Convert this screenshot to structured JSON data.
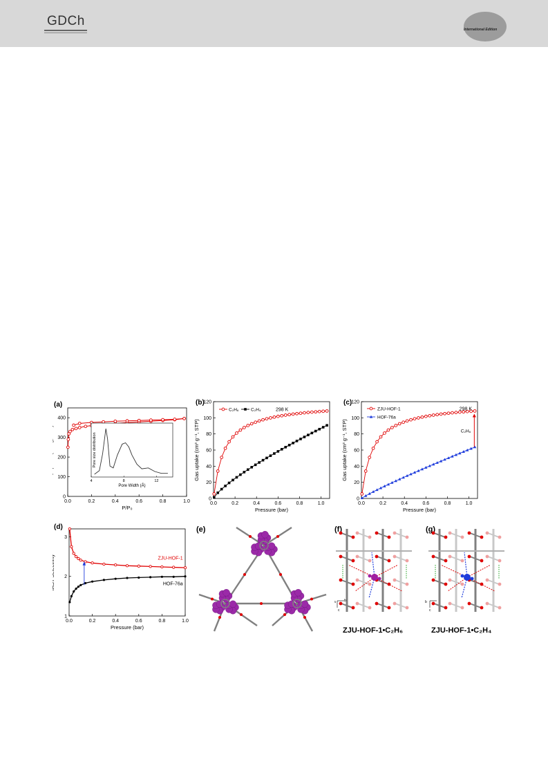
{
  "header": {
    "logo_text": "GDCh",
    "edition_text": "International Edition",
    "accent_color": "#9c9c9c"
  },
  "figure": {
    "panel_labels": [
      "(a)",
      "(b)",
      "(c)",
      "(d)",
      "(e)",
      "(f)",
      "(g)"
    ],
    "captions": {
      "f": "ZJU-HOF-1•C₂H₆",
      "g": "ZJU-HOF-1•C₂H₄"
    },
    "axes_marker_f": [
      "a",
      "b",
      "c"
    ],
    "axes_marker_g": [
      "b",
      "c"
    ],
    "molecule_colors": {
      "frame": "#808080",
      "oxygen": "#e00000",
      "guest_c2h6": "#a020a0",
      "guest_c2h4": "#1e3cdc",
      "pore": "#9b2aa8"
    }
  },
  "chart_data": [
    {
      "id": "a",
      "type": "line",
      "xlabel": "P/P₀",
      "ylabel": "N₂ uptake (cm³/g, STP)",
      "xlim": [
        0,
        1.0
      ],
      "ylim": [
        0,
        450
      ],
      "xticks": [
        "0.0",
        "0.2",
        "0.4",
        "0.6",
        "0.8",
        "1.0"
      ],
      "yticks": [
        "0",
        "100",
        "200",
        "300",
        "400"
      ],
      "color": "#e00000",
      "series": [
        {
          "role": "adsorption",
          "x": [
            0.002,
            0.005,
            0.01,
            0.02,
            0.04,
            0.07,
            0.1,
            0.15,
            0.2,
            0.3,
            0.4,
            0.5,
            0.6,
            0.7,
            0.8,
            0.9,
            0.98
          ],
          "y": [
            250,
            290,
            318,
            330,
            340,
            345,
            350,
            356,
            360,
            366,
            371,
            375,
            379,
            382,
            386,
            390,
            396
          ]
        },
        {
          "role": "desorption",
          "x": [
            0.98,
            0.9,
            0.8,
            0.7,
            0.6,
            0.5,
            0.4,
            0.3,
            0.2,
            0.1,
            0.05
          ],
          "y": [
            396,
            392,
            390,
            388,
            386,
            384,
            382,
            379,
            376,
            371,
            362
          ]
        }
      ],
      "inset": {
        "xlabel": "Pore Width (Å)",
        "ylabel": "Pore size distribution",
        "xlim": [
          4,
          14
        ],
        "xticks": [
          "4",
          "8",
          "12"
        ],
        "curve": {
          "x": [
            4.4,
            5.0,
            5.4,
            5.8,
            6.0,
            6.3,
            6.7,
            7.2,
            7.8,
            8.2,
            8.6,
            9.0,
            9.6,
            10.2,
            11,
            11.8,
            12.6,
            13.4
          ],
          "y": [
            0.0,
            0.08,
            0.45,
            1.0,
            0.78,
            0.18,
            0.14,
            0.42,
            0.66,
            0.69,
            0.6,
            0.42,
            0.22,
            0.12,
            0.14,
            0.06,
            0.02,
            0.02
          ]
        }
      }
    },
    {
      "id": "b",
      "type": "line",
      "xlabel": "Pressure (bar)",
      "ylabel": "Gas uptake (cm³ g⁻¹, STP)",
      "xlim": [
        0,
        1.08
      ],
      "ylim": [
        0,
        120
      ],
      "xticks": [
        "0.0",
        "0.2",
        "0.4",
        "0.6",
        "0.8",
        "1.0"
      ],
      "yticks": [
        "0",
        "20",
        "40",
        "60",
        "80",
        "100",
        "120"
      ],
      "annotation": "298 K",
      "series": [
        {
          "name": "C₂H₆",
          "color": "#e00000",
          "marker": "circle",
          "k": 0.1,
          "vmax": 108.5
        },
        {
          "name": "C₂H₄",
          "color": "#000000",
          "marker": "square",
          "k": 0.93,
          "vmax": 91,
          "exp": 0.78
        }
      ]
    },
    {
      "id": "c",
      "type": "line",
      "xlabel": "Pressure (bar)",
      "ylabel": "Gas uptake (cm³ g⁻¹, STP)",
      "xlim": [
        0,
        1.08
      ],
      "ylim": [
        0,
        120
      ],
      "xticks": [
        "0.0",
        "0.2",
        "0.4",
        "0.6",
        "0.8",
        "1.0"
      ],
      "yticks": [
        "0",
        "20",
        "40",
        "60",
        "80",
        "100",
        "120"
      ],
      "annotation": "298 K",
      "arrow_label": "C₂H₆",
      "series": [
        {
          "name": "ZJU-HOF-1",
          "color": "#e00000",
          "marker": "circle",
          "k": 0.1,
          "vmax": 108.5
        },
        {
          "name": "HOF-76a",
          "color": "#1e3cdc",
          "marker": "triangle",
          "k": 1.1,
          "vmax": 64,
          "exp": 0.9
        }
      ]
    },
    {
      "id": "d",
      "type": "line",
      "xlabel": "Pressure (bar)",
      "ylabel": "IAST Selectivity",
      "xlim": [
        0,
        1.0
      ],
      "ylim": [
        1,
        3.2
      ],
      "xticks": [
        "0.0",
        "0.2",
        "0.4",
        "0.6",
        "0.8",
        "1.0"
      ],
      "yticks": [
        "1",
        "2",
        "3"
      ],
      "series": [
        {
          "name": "ZJU-HOF-1",
          "color": "#e00000",
          "x": [
            0.005,
            0.02,
            0.04,
            0.06,
            0.08,
            0.1,
            0.14,
            0.2,
            0.3,
            0.4,
            0.5,
            0.6,
            0.7,
            0.8,
            0.9,
            1.0
          ],
          "y": [
            3.2,
            2.75,
            2.58,
            2.5,
            2.45,
            2.41,
            2.37,
            2.34,
            2.31,
            2.29,
            2.27,
            2.26,
            2.25,
            2.24,
            2.23,
            2.22
          ]
        },
        {
          "name": "HOF-76a",
          "color": "#000000",
          "x": [
            0.005,
            0.02,
            0.04,
            0.06,
            0.08,
            0.1,
            0.14,
            0.2,
            0.3,
            0.4,
            0.5,
            0.6,
            0.7,
            0.8,
            0.9,
            1.0
          ],
          "y": [
            1.35,
            1.5,
            1.62,
            1.69,
            1.74,
            1.78,
            1.83,
            1.87,
            1.91,
            1.94,
            1.96,
            1.97,
            1.98,
            1.99,
            1.99,
            2.0
          ]
        }
      ]
    }
  ]
}
